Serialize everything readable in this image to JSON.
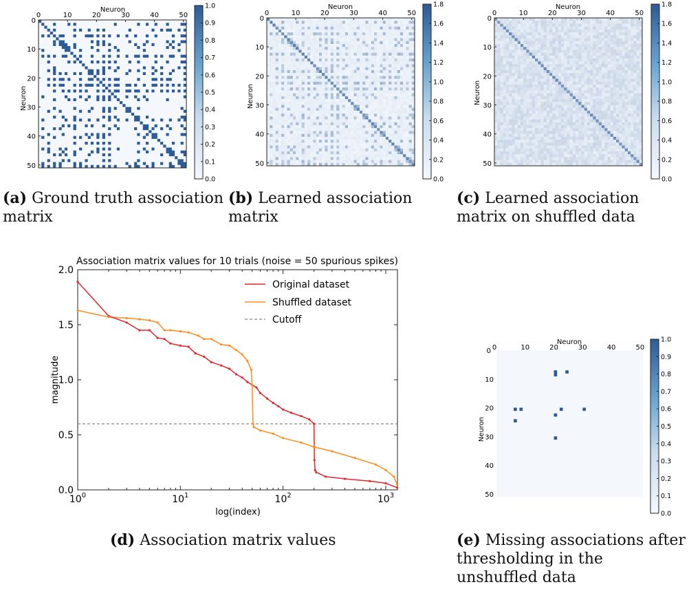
{
  "figure": {
    "captions": {
      "a": {
        "letter": "(a)",
        "text": "Ground truth association matrix"
      },
      "b": {
        "letter": "(b)",
        "text": "Learned association matrix"
      },
      "c": {
        "letter": "(c)",
        "text": "Learned association matrix on shuffled data"
      },
      "d": {
        "letter": "(d)",
        "text": "Association matrix values"
      },
      "e": {
        "letter": "(e)",
        "text": "Missing associations after thresholding in the unshuffled data"
      }
    }
  },
  "chart_data": [
    {
      "id": "a",
      "type": "heatmap",
      "xlabel": "Neuron",
      "ylabel": "Neuron",
      "x_ticks": [
        "0",
        "10",
        "20",
        "30",
        "40",
        "50"
      ],
      "y_ticks": [
        "0",
        "10",
        "20",
        "30",
        "40",
        "50"
      ],
      "colorbar": {
        "min": 0.0,
        "max": 1.0,
        "ticks": [
          "0.0",
          "0.1",
          "0.2",
          "0.3",
          "0.4",
          "0.5",
          "0.6",
          "0.7",
          "0.8",
          "0.9",
          "1.0"
        ]
      },
      "size": 51,
      "cluster_rows": [
        1,
        3,
        5,
        7,
        9,
        12,
        14,
        17,
        20,
        22,
        24,
        27,
        30,
        33,
        36,
        39,
        42,
        45,
        48,
        50
      ],
      "cluster_cols": [
        3,
        5,
        8,
        10,
        12,
        16,
        18,
        20,
        22,
        24,
        26,
        31,
        34,
        37,
        40,
        44,
        46,
        49,
        50
      ],
      "low_color": "#f4f8fd",
      "high_color": "#2d5b96"
    },
    {
      "id": "b",
      "type": "heatmap",
      "xlabel": "Neuron",
      "ylabel": "Neuron",
      "x_ticks": [
        "0",
        "10",
        "20",
        "30",
        "40",
        "50"
      ],
      "y_ticks": [
        "0",
        "10",
        "20",
        "30",
        "40",
        "50"
      ],
      "colorbar": {
        "min": 0.0,
        "max": 1.8,
        "ticks": [
          "0.0",
          "0.2",
          "0.4",
          "0.6",
          "0.8",
          "1.0",
          "1.2",
          "1.4",
          "1.6",
          "1.8"
        ]
      },
      "size": 51,
      "low_color": "#f4f8fd",
      "high_color": "#2d5b96"
    },
    {
      "id": "c",
      "type": "heatmap",
      "xlabel": "Neuron",
      "ylabel": "Neuron",
      "x_ticks": [
        "0",
        "10",
        "20",
        "30",
        "40",
        "50"
      ],
      "y_ticks": [
        "0",
        "10",
        "20",
        "30",
        "40",
        "50"
      ],
      "colorbar": {
        "min": 0.0,
        "max": 1.8,
        "ticks": [
          "0.0",
          "0.2",
          "0.4",
          "0.6",
          "0.8",
          "1.0",
          "1.2",
          "1.4",
          "1.6",
          "1.8"
        ]
      },
      "size": 51,
      "low_color": "#f4f8fd",
      "high_color": "#2d5b96"
    },
    {
      "id": "d",
      "type": "line",
      "title": "Association matrix values for 10 trials (noise = 50 spurious spikes)",
      "xlabel": "log(index)",
      "ylabel": "magnitude",
      "x_scale": "log",
      "xlim": [
        1,
        1300
      ],
      "ylim": [
        0.0,
        2.0
      ],
      "x_ticks": [
        {
          "value": 1,
          "base": "10",
          "exp": "0"
        },
        {
          "value": 10,
          "base": "10",
          "exp": "1"
        },
        {
          "value": 100,
          "base": "10",
          "exp": "2"
        },
        {
          "value": 1000,
          "base": "10",
          "exp": "3"
        }
      ],
      "y_ticks": [
        "0.0",
        "0.5",
        "1.0",
        "1.5",
        "2.0"
      ],
      "legend_position": "top-right",
      "series": [
        {
          "name": "Original dataset",
          "color": "#e0262b",
          "points": [
            [
              1,
              1.89
            ],
            [
              2,
              1.58
            ],
            [
              3,
              1.52
            ],
            [
              4,
              1.45
            ],
            [
              5,
              1.45
            ],
            [
              6,
              1.38
            ],
            [
              7,
              1.37
            ],
            [
              8,
              1.33
            ],
            [
              10,
              1.31
            ],
            [
              12,
              1.3
            ],
            [
              14,
              1.24
            ],
            [
              17,
              1.21
            ],
            [
              20,
              1.16
            ],
            [
              25,
              1.13
            ],
            [
              30,
              1.1
            ],
            [
              35,
              1.05
            ],
            [
              40,
              1.02
            ],
            [
              45,
              0.98
            ],
            [
              55,
              0.93
            ],
            [
              60,
              0.88
            ],
            [
              70,
              0.83
            ],
            [
              80,
              0.79
            ],
            [
              90,
              0.76
            ],
            [
              100,
              0.73
            ],
            [
              120,
              0.7
            ],
            [
              150,
              0.67
            ],
            [
              180,
              0.64
            ],
            [
              200,
              0.6
            ],
            [
              202,
              0.27
            ],
            [
              205,
              0.18
            ],
            [
              210,
              0.16
            ],
            [
              260,
              0.12
            ],
            [
              400,
              0.1
            ],
            [
              700,
              0.08
            ],
            [
              1000,
              0.06
            ],
            [
              1290,
              0.02
            ]
          ]
        },
        {
          "name": "Shuffled dataset",
          "color": "#ff8c1a",
          "points": [
            [
              1,
              1.63
            ],
            [
              2,
              1.57
            ],
            [
              3,
              1.56
            ],
            [
              4,
              1.55
            ],
            [
              5,
              1.54
            ],
            [
              6,
              1.52
            ],
            [
              7,
              1.45
            ],
            [
              8,
              1.45
            ],
            [
              10,
              1.44
            ],
            [
              12,
              1.43
            ],
            [
              15,
              1.4
            ],
            [
              17,
              1.37
            ],
            [
              20,
              1.37
            ],
            [
              25,
              1.32
            ],
            [
              30,
              1.31
            ],
            [
              35,
              1.27
            ],
            [
              40,
              1.23
            ],
            [
              45,
              1.17
            ],
            [
              49,
              1.09
            ],
            [
              50,
              0.95
            ],
            [
              51,
              0.6
            ],
            [
              52,
              0.57
            ],
            [
              60,
              0.54
            ],
            [
              80,
              0.51
            ],
            [
              100,
              0.47
            ],
            [
              150,
              0.43
            ],
            [
              200,
              0.39
            ],
            [
              300,
              0.35
            ],
            [
              500,
              0.29
            ],
            [
              800,
              0.23
            ],
            [
              1000,
              0.18
            ],
            [
              1200,
              0.12
            ],
            [
              1290,
              0.05
            ]
          ]
        }
      ],
      "cutoff": {
        "name": "Cutoff",
        "value": 0.6,
        "color": "#888888"
      }
    },
    {
      "id": "e",
      "type": "heatmap",
      "xlabel": "Neuron",
      "ylabel": "Neuron",
      "x_ticks": [
        "0",
        "10",
        "20",
        "30",
        "40",
        "50"
      ],
      "y_ticks": [
        "10",
        "20",
        "30",
        "40",
        "50"
      ],
      "y_zero_tick": "0",
      "colorbar": {
        "min": 0.0,
        "max": 1.0,
        "ticks": [
          "0.0",
          "0.1",
          "0.2",
          "0.3",
          "0.4",
          "0.5",
          "0.6",
          "0.7",
          "0.8",
          "0.9",
          "1.0"
        ]
      },
      "size": 51,
      "cells": [
        [
          20,
          7
        ],
        [
          24,
          7
        ],
        [
          20,
          8
        ],
        [
          6,
          20
        ],
        [
          8,
          20
        ],
        [
          22,
          20
        ],
        [
          30,
          20
        ],
        [
          20,
          22
        ],
        [
          6,
          24
        ],
        [
          20,
          30
        ]
      ],
      "low_color": "#f4f8fd",
      "high_color": "#2d5b96"
    }
  ]
}
